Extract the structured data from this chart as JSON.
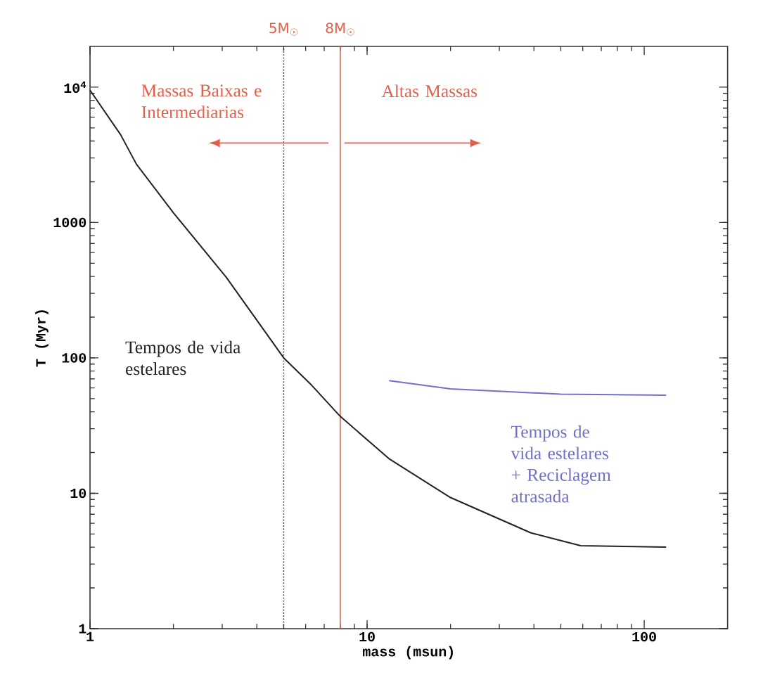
{
  "chart_data": {
    "type": "line",
    "xlabel": "mass (msun)",
    "ylabel": "T (Myr)",
    "log": "xy",
    "xlim": [
      1,
      200
    ],
    "ylim": [
      1,
      20000
    ],
    "xticks": [
      1,
      10,
      100
    ],
    "yticks": [
      1,
      10,
      100,
      1000,
      {
        "value": 10000,
        "label": "10$^{4}$"
      }
    ],
    "marker": "none",
    "line_style": "solid",
    "series": [
      {
        "name": "Tempos de vida estelares",
        "color": "#222222",
        "x": [
          1,
          1.29,
          1.47,
          2,
          3.1,
          5,
          6.3,
          8,
          12,
          20,
          39,
          59,
          120
        ],
        "values": [
          9500,
          4450,
          2700,
          1180,
          395,
          100,
          63,
          37,
          18,
          9.3,
          5.1,
          4.1,
          4.0
        ]
      },
      {
        "name": "Tempos de vida estelares + Reciclagem atrasada",
        "color": "#7070c8",
        "x": [
          12,
          20,
          50,
          120
        ],
        "values": [
          68,
          59,
          54,
          53
        ]
      }
    ],
    "ref_lines": [
      {
        "axis": "x",
        "value": 5,
        "label": "5M$_{☉}$",
        "color": "#333333",
        "line_style": "dotted"
      },
      {
        "axis": "x",
        "value": 8,
        "label": "8M$_{☉}$",
        "color": "#e0604a",
        "line_style": "solid"
      }
    ],
    "annotations": [
      "Massas Baixas e Intermediarias",
      "Altas Massas"
    ]
  }
}
